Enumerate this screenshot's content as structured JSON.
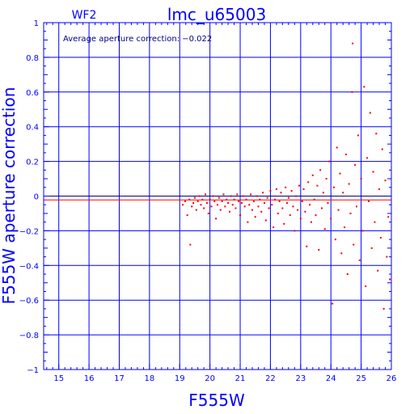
{
  "chart_data": {
    "type": "scatter",
    "title": "lmc_u65003",
    "panel_label": "WF2",
    "annotation": "Average aperture correction: −0.022",
    "xlabel": "F555W",
    "ylabel": "F555W aperture correction",
    "xlim": [
      14.5,
      26
    ],
    "ylim": [
      -1,
      1
    ],
    "xticks": [
      15,
      16,
      17,
      18,
      19,
      20,
      21,
      22,
      23,
      24,
      25,
      26
    ],
    "yticks": [
      1,
      0.8,
      0.6,
      0.4,
      0.2,
      0,
      -0.2,
      -0.4,
      -0.6,
      -0.8,
      -1
    ],
    "ytick_labels": [
      "1",
      "0.8",
      "0.6",
      "0.4",
      "0.2",
      "0",
      "−0.2",
      "−0.4",
      "−0.6",
      "−0.8",
      "−1"
    ],
    "grid": true,
    "reference_lines": [
      0,
      -0.022
    ],
    "colors": {
      "axes": "#0000ff",
      "points": "#ff0000",
      "zero_line": "#000080",
      "average_line": "#ff0000",
      "annotation": "#000080"
    },
    "points": [
      [
        19.1,
        -0.05
      ],
      [
        19.18,
        -0.03
      ],
      [
        19.25,
        -0.11
      ],
      [
        19.32,
        -0.02
      ],
      [
        19.35,
        -0.28
      ],
      [
        19.4,
        -0.06
      ],
      [
        19.45,
        -0.04
      ],
      [
        19.5,
        -0.01
      ],
      [
        19.55,
        -0.08
      ],
      [
        19.6,
        -0.03
      ],
      [
        19.65,
        0.0
      ],
      [
        19.7,
        -0.05
      ],
      [
        19.75,
        -0.02
      ],
      [
        19.8,
        -0.07
      ],
      [
        19.85,
        0.01
      ],
      [
        19.9,
        -0.04
      ],
      [
        19.95,
        -0.1
      ],
      [
        20.0,
        -0.02
      ],
      [
        20.05,
        -0.06
      ],
      [
        20.1,
        0.0
      ],
      [
        20.15,
        -0.03
      ],
      [
        20.2,
        -0.13
      ],
      [
        20.25,
        -0.05
      ],
      [
        20.3,
        -0.01
      ],
      [
        20.35,
        -0.08
      ],
      [
        20.4,
        -0.03
      ],
      [
        20.45,
        0.01
      ],
      [
        20.5,
        -0.06
      ],
      [
        20.55,
        -0.02
      ],
      [
        20.6,
        -0.04
      ],
      [
        20.65,
        -0.09
      ],
      [
        20.7,
        0.0
      ],
      [
        20.75,
        -0.05
      ],
      [
        20.8,
        -0.02
      ],
      [
        20.85,
        -0.07
      ],
      [
        20.9,
        0.01
      ],
      [
        20.95,
        -0.03
      ],
      [
        21.0,
        -0.11
      ],
      [
        21.05,
        -0.04
      ],
      [
        21.1,
        0.0
      ],
      [
        21.15,
        -0.06
      ],
      [
        21.2,
        -0.02
      ],
      [
        21.25,
        -0.15
      ],
      [
        21.3,
        -0.05
      ],
      [
        21.35,
        0.01
      ],
      [
        21.4,
        -0.08
      ],
      [
        21.45,
        -0.03
      ],
      [
        21.5,
        -0.12
      ],
      [
        21.55,
        0.0
      ],
      [
        21.6,
        -0.06
      ],
      [
        21.65,
        -0.02
      ],
      [
        21.7,
        -0.09
      ],
      [
        21.75,
        0.02
      ],
      [
        21.8,
        -0.04
      ],
      [
        21.85,
        -0.14
      ],
      [
        21.9,
        -0.01
      ],
      [
        21.95,
        -0.07
      ],
      [
        22.0,
        0.03
      ],
      [
        22.05,
        -0.05
      ],
      [
        22.1,
        -0.18
      ],
      [
        22.15,
        -0.02
      ],
      [
        22.2,
        0.04
      ],
      [
        22.25,
        -0.1
      ],
      [
        22.3,
        -0.03
      ],
      [
        22.35,
        0.02
      ],
      [
        22.4,
        -0.07
      ],
      [
        22.45,
        -0.16
      ],
      [
        22.5,
        0.05
      ],
      [
        22.55,
        -0.04
      ],
      [
        22.6,
        -0.01
      ],
      [
        22.65,
        -0.11
      ],
      [
        22.7,
        0.03
      ],
      [
        22.75,
        -0.06
      ],
      [
        22.8,
        -0.2
      ],
      [
        22.85,
        0.0
      ],
      [
        22.9,
        -0.08
      ],
      [
        22.95,
        0.06
      ],
      [
        23.0,
        -0.13
      ],
      [
        23.05,
        -0.03
      ],
      [
        23.1,
        0.04
      ],
      [
        23.15,
        -0.09
      ],
      [
        23.2,
        -0.29
      ],
      [
        23.25,
        0.08
      ],
      [
        23.3,
        -0.05
      ],
      [
        23.35,
        -0.15
      ],
      [
        23.4,
        0.12
      ],
      [
        23.45,
        -0.02
      ],
      [
        23.5,
        -0.11
      ],
      [
        23.55,
        0.06
      ],
      [
        23.6,
        -0.31
      ],
      [
        23.65,
        0.15
      ],
      [
        23.7,
        -0.07
      ],
      [
        23.75,
        0.02
      ],
      [
        23.8,
        -0.19
      ],
      [
        23.85,
        0.1
      ],
      [
        23.9,
        -0.04
      ],
      [
        23.95,
        0.2
      ],
      [
        24.0,
        -0.13
      ],
      [
        24.05,
        -0.62
      ],
      [
        24.1,
        0.05
      ],
      [
        24.15,
        -0.25
      ],
      [
        24.2,
        0.28
      ],
      [
        24.25,
        -0.08
      ],
      [
        24.3,
        0.13
      ],
      [
        24.35,
        -0.33
      ],
      [
        24.4,
        0.02
      ],
      [
        24.45,
        -0.18
      ],
      [
        24.5,
        0.24
      ],
      [
        24.55,
        -0.45
      ],
      [
        24.6,
        0.07
      ],
      [
        24.65,
        -0.1
      ],
      [
        24.7,
        0.6
      ],
      [
        24.72,
        0.88
      ],
      [
        24.75,
        -0.28
      ],
      [
        24.8,
        0.18
      ],
      [
        24.85,
        -0.06
      ],
      [
        24.9,
        0.35
      ],
      [
        24.95,
        -0.37
      ],
      [
        25.0,
        0.1
      ],
      [
        25.05,
        -0.2
      ],
      [
        25.1,
        0.63
      ],
      [
        25.15,
        -0.52
      ],
      [
        25.2,
        0.22
      ],
      [
        25.25,
        -0.03
      ],
      [
        25.3,
        0.48
      ],
      [
        25.35,
        -0.3
      ],
      [
        25.4,
        0.14
      ],
      [
        25.45,
        -0.15
      ],
      [
        25.5,
        0.36
      ],
      [
        25.55,
        -0.43
      ],
      [
        25.6,
        0.04
      ],
      [
        25.65,
        -0.24
      ],
      [
        25.7,
        0.27
      ],
      [
        25.75,
        -0.65
      ],
      [
        25.8,
        0.09
      ],
      [
        25.85,
        -0.35
      ],
      [
        25.9,
        -0.12
      ],
      [
        25.95,
        -0.48
      ]
    ]
  }
}
